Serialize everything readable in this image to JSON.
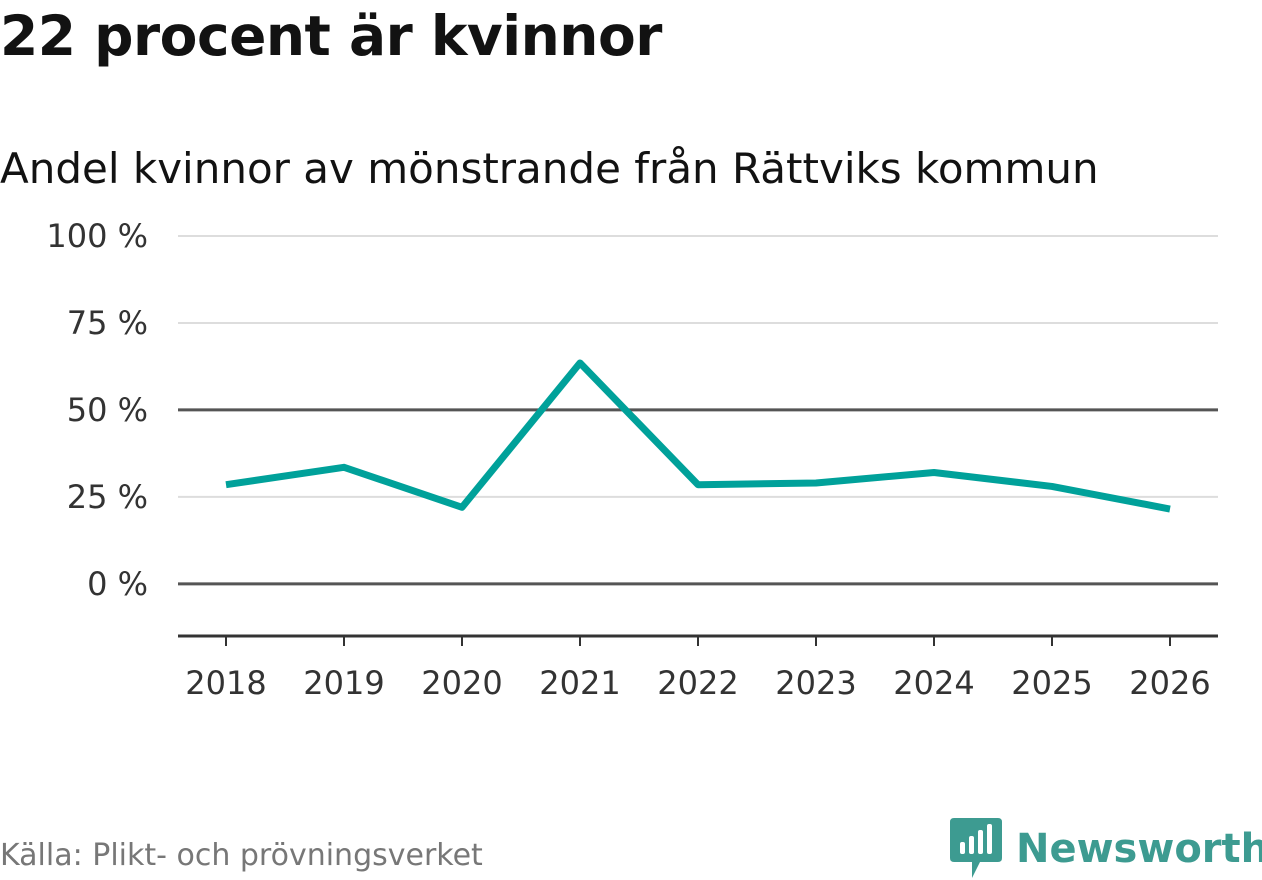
{
  "title": "22 procent är kvinnor",
  "subtitle": "Andel kvinnor av mönstrande från Rättviks kommun",
  "source": "Källa: Plikt- och prövningsverket",
  "brand": {
    "name": "Newsworthy",
    "color": "#3d9b91"
  },
  "chart_data": {
    "type": "line",
    "title": "22 procent är kvinnor",
    "subtitle": "Andel kvinnor av mönstrande från Rättviks kommun",
    "xlabel": "",
    "ylabel": "",
    "x": [
      "2018",
      "2019",
      "2020",
      "2021",
      "2022",
      "2023",
      "2024",
      "2025",
      "2026"
    ],
    "series": [
      {
        "name": "Andel kvinnor",
        "color": "#00a19a",
        "values": [
          28.5,
          33.5,
          22.0,
          63.5,
          28.5,
          29.0,
          32.0,
          28.0,
          21.5
        ]
      }
    ],
    "ylim": [
      -15,
      100
    ],
    "yticks": [
      0,
      25,
      50,
      75,
      100
    ],
    "ytick_labels": [
      "0 %",
      "25 %",
      "50 %",
      "75 %",
      "100 %"
    ],
    "grid": true,
    "reference_lines": [
      0,
      50
    ]
  }
}
